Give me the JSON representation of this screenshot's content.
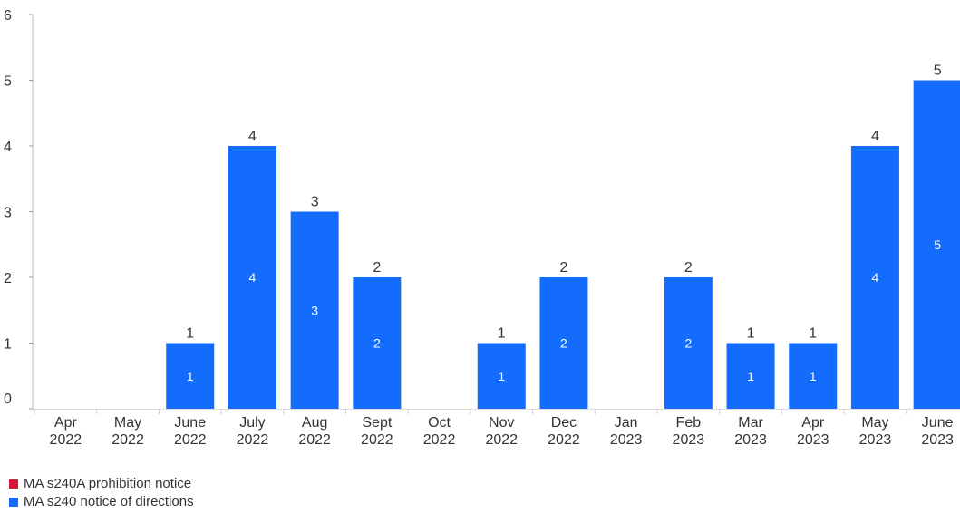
{
  "chart_data": {
    "type": "bar",
    "stacked": true,
    "categories": [
      [
        "Apr",
        "2022"
      ],
      [
        "May",
        "2022"
      ],
      [
        "June",
        "2022"
      ],
      [
        "July",
        "2022"
      ],
      [
        "Aug",
        "2022"
      ],
      [
        "Sept",
        "2022"
      ],
      [
        "Oct",
        "2022"
      ],
      [
        "Nov",
        "2022"
      ],
      [
        "Dec",
        "2022"
      ],
      [
        "Jan",
        "2023"
      ],
      [
        "Feb",
        "2023"
      ],
      [
        "Mar",
        "2023"
      ],
      [
        "Apr",
        "2023"
      ],
      [
        "May",
        "2023"
      ],
      [
        "June",
        "2023"
      ]
    ],
    "series": [
      {
        "name": "MA s240A prohibition notice",
        "color": "#d7153a",
        "values": [
          0,
          0,
          0,
          0,
          0,
          0,
          0,
          0,
          0,
          0,
          0,
          0,
          0,
          0,
          0
        ]
      },
      {
        "name": "MA s240 notice of directions",
        "color": "#146cfd",
        "values": [
          0,
          0,
          1,
          4,
          3,
          2,
          0,
          1,
          2,
          0,
          2,
          1,
          1,
          4,
          5
        ]
      }
    ],
    "ylim": [
      0,
      6
    ],
    "yticks": [
      0,
      1,
      2,
      3,
      4,
      5,
      6
    ],
    "grid": false,
    "legend_position": "bottom-left",
    "xlabel": "",
    "ylabel": "",
    "title": ""
  }
}
